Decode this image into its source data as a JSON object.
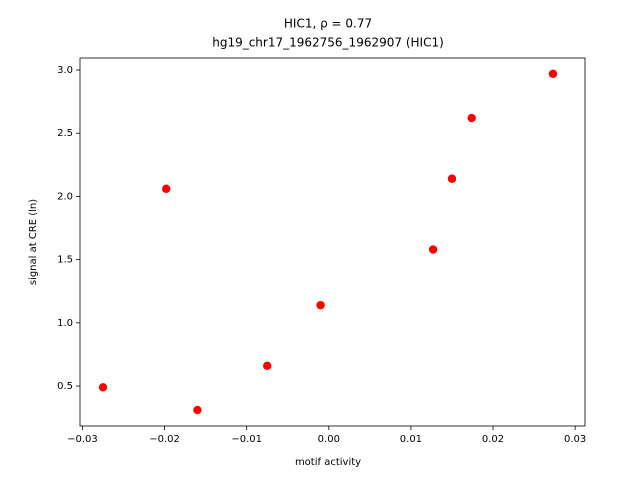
{
  "chart_data": {
    "type": "scatter",
    "title": "HIC1, ρ = 0.77",
    "subtitle": "hg19_chr17_1962756_1962907 (HIC1)",
    "x_label": "motif activity",
    "y_label": "signal at CRE (ln)",
    "series": [
      {
        "color": "#ff0000",
        "x": [
          -0.0275,
          -0.0198,
          -0.016,
          -0.0075,
          -0.001,
          0.0127,
          0.015,
          0.0174,
          0.0273
        ],
        "values": [
          0.49,
          2.06,
          0.31,
          0.66,
          1.14,
          1.58,
          2.14,
          2.62,
          2.97
        ]
      }
    ],
    "xlim": [
      -0.0303,
      0.0312
    ],
    "ylim": [
      0.184,
      3.095
    ],
    "xticks": [
      {
        "value": -0.03,
        "label": "−0.03"
      },
      {
        "value": -0.02,
        "label": "−0.02"
      },
      {
        "value": -0.01,
        "label": "−0.01"
      },
      {
        "value": 0,
        "label": "0.00"
      },
      0.01,
      0.02,
      0.03
    ],
    "yticks": [
      0.5,
      {
        "value": 1,
        "label": "1.0"
      },
      1.5,
      {
        "value": 2,
        "label": "2.0"
      },
      2.5,
      {
        "value": 3,
        "label": "3.0"
      }
    ],
    "grid": false
  }
}
